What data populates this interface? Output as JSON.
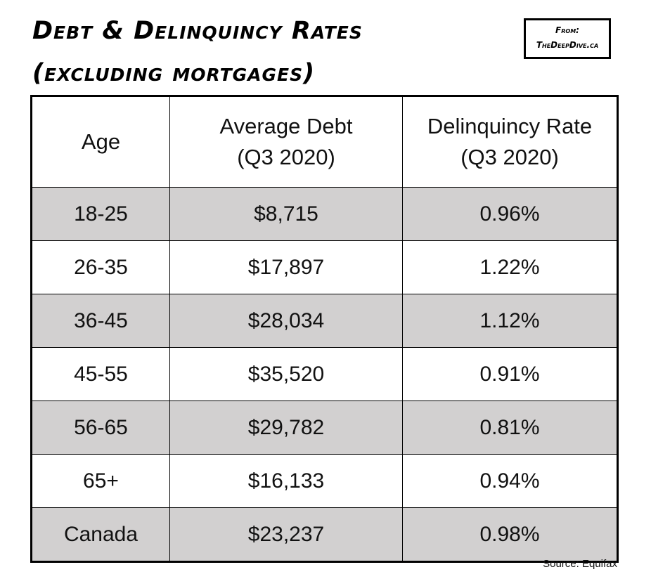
{
  "title_line1": "Debt & Delinquincy Rates",
  "title_line2": "(excluding mortgages)",
  "badge": {
    "from": "From:",
    "site": "TheDeepDive.ca"
  },
  "source": "Source: Equifax",
  "colors": {
    "shaded_row": "#d2d0d0",
    "border": "#000000"
  },
  "chart_data": {
    "type": "table",
    "columns": [
      {
        "line1": "Age",
        "line2": ""
      },
      {
        "line1": "Average Debt",
        "line2": "(Q3 2020)"
      },
      {
        "line1": "Delinquincy Rate",
        "line2": "(Q3 2020)"
      }
    ],
    "rows": [
      {
        "age": "18-25",
        "debt": "$8,715",
        "rate": "0.96%"
      },
      {
        "age": "26-35",
        "debt": "$17,897",
        "rate": "1.22%"
      },
      {
        "age": "36-45",
        "debt": "$28,034",
        "rate": "1.12%"
      },
      {
        "age": "45-55",
        "debt": "$35,520",
        "rate": "0.91%"
      },
      {
        "age": "56-65",
        "debt": "$29,782",
        "rate": "0.81%"
      },
      {
        "age": "65+",
        "debt": "$16,133",
        "rate": "0.94%"
      },
      {
        "age": "Canada",
        "debt": "$23,237",
        "rate": "0.98%"
      }
    ]
  }
}
